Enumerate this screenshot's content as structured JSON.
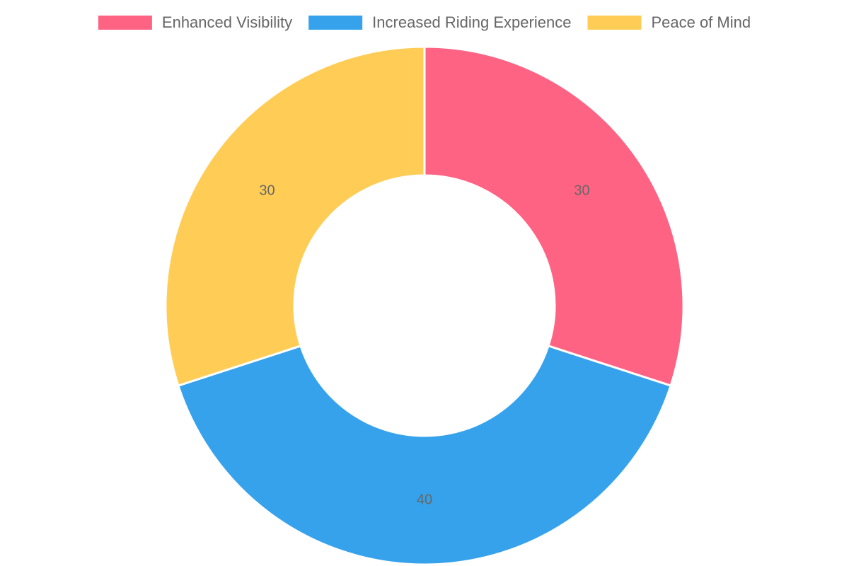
{
  "chart_data": {
    "type": "doughnut",
    "categories": [
      "Enhanced Visibility",
      "Increased Riding Experience",
      "Peace of Mind"
    ],
    "values": [
      30,
      40,
      30
    ],
    "colors": [
      "#ff6384",
      "#36a2eb",
      "#ffcd56"
    ],
    "legend": "top"
  }
}
